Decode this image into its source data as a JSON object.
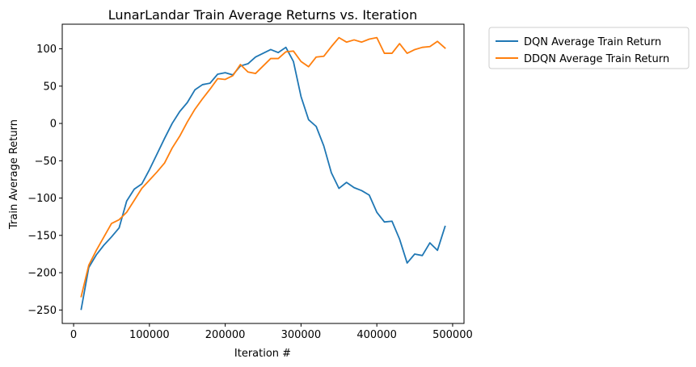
{
  "chart_data": {
    "type": "line",
    "title": "LunarLandar Train Average Returns vs. Iteration",
    "xlabel": "Iteration #",
    "ylabel": "Train Average Return",
    "xlim": [
      -15000,
      515000
    ],
    "ylim": [
      -268,
      133
    ],
    "xticks": [
      0,
      100000,
      200000,
      300000,
      400000,
      500000
    ],
    "xtick_labels": [
      "0",
      "100000",
      "200000",
      "300000",
      "400000",
      "500000"
    ],
    "yticks": [
      -250,
      -200,
      -150,
      -100,
      -50,
      0,
      50,
      100
    ],
    "ytick_labels": [
      "−250",
      "−200",
      "−150",
      "−100",
      "−50",
      "0",
      "50",
      "100"
    ],
    "grid": false,
    "legend_position": "outside-top-right",
    "x": [
      10000,
      20000,
      30000,
      40000,
      50000,
      60000,
      70000,
      80000,
      90000,
      100000,
      110000,
      120000,
      130000,
      140000,
      150000,
      160000,
      170000,
      180000,
      190000,
      200000,
      210000,
      220000,
      230000,
      240000,
      250000,
      260000,
      270000,
      280000,
      290000,
      300000,
      310000,
      320000,
      330000,
      340000,
      350000,
      360000,
      370000,
      380000,
      390000,
      400000,
      410000,
      420000,
      430000,
      440000,
      450000,
      460000,
      470000,
      480000,
      490000
    ],
    "series": [
      {
        "name": "DQN Average Train Return",
        "color": "#1f77b4",
        "values": [
          -249,
          -193,
          -176,
          -163,
          -152,
          -140,
          -104,
          -88,
          -81,
          -62,
          -41,
          -20,
          0,
          16,
          28,
          45,
          52,
          54,
          66,
          68,
          65,
          77,
          80,
          89,
          94,
          99,
          95,
          102,
          83,
          36,
          5,
          -4,
          -30,
          -66,
          -87,
          -79,
          -86,
          -90,
          -96,
          -119,
          -132,
          -131,
          -155,
          -187,
          -175,
          -177,
          -160,
          -170,
          -138
        ]
      },
      {
        "name": "DDQN Average Train Return",
        "color": "#ff7f0e",
        "values": [
          -232,
          -190,
          -170,
          -152,
          -134,
          -129,
          -119,
          -103,
          -87,
          -76,
          -65,
          -53,
          -33,
          -17,
          2,
          19,
          33,
          46,
          60,
          59,
          64,
          79,
          69,
          67,
          77,
          87,
          87,
          96,
          97,
          83,
          76,
          89,
          90,
          103,
          115,
          109,
          112,
          109,
          113,
          115,
          94,
          94,
          107,
          94,
          99,
          102,
          103,
          110,
          101
        ]
      }
    ]
  }
}
